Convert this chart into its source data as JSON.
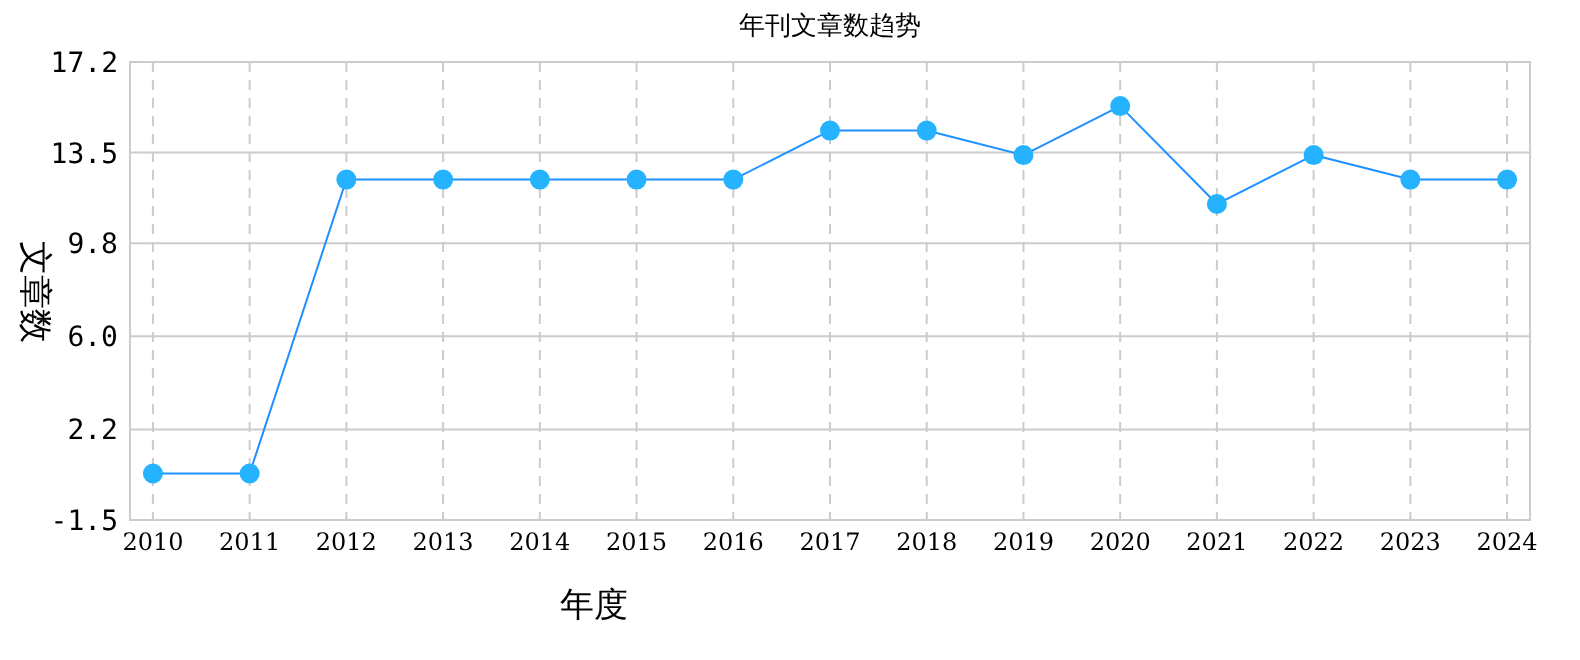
{
  "chart_data": {
    "type": "line",
    "title": "年刊文章数趋势",
    "xlabel": "年度",
    "ylabel": "文章数",
    "categories": [
      "2010",
      "2011",
      "2012",
      "2013",
      "2014",
      "2015",
      "2016",
      "2017",
      "2018",
      "2019",
      "2020",
      "2021",
      "2022",
      "2023",
      "2024"
    ],
    "series": [
      {
        "color": "#1e90ff",
        "values": [
          0.4,
          0.4,
          12.4,
          12.4,
          12.4,
          12.4,
          12.4,
          14.4,
          14.4,
          13.4,
          15.4,
          11.4,
          13.4,
          12.4,
          12.4
        ]
      }
    ],
    "ylim": [
      -1.5,
      17.2
    ],
    "yticks": [
      {
        "value": -1.5,
        "label": "-1.5"
      },
      {
        "value": 2.2,
        "label": "2.2"
      },
      {
        "value": 6,
        "label": "6.0"
      },
      {
        "value": 9.8,
        "label": "9.8"
      },
      {
        "value": 13.5,
        "label": "13.5"
      },
      {
        "value": 17.2,
        "label": "17.2"
      }
    ],
    "grid": true,
    "marker": "circle",
    "line_style": "solid"
  }
}
